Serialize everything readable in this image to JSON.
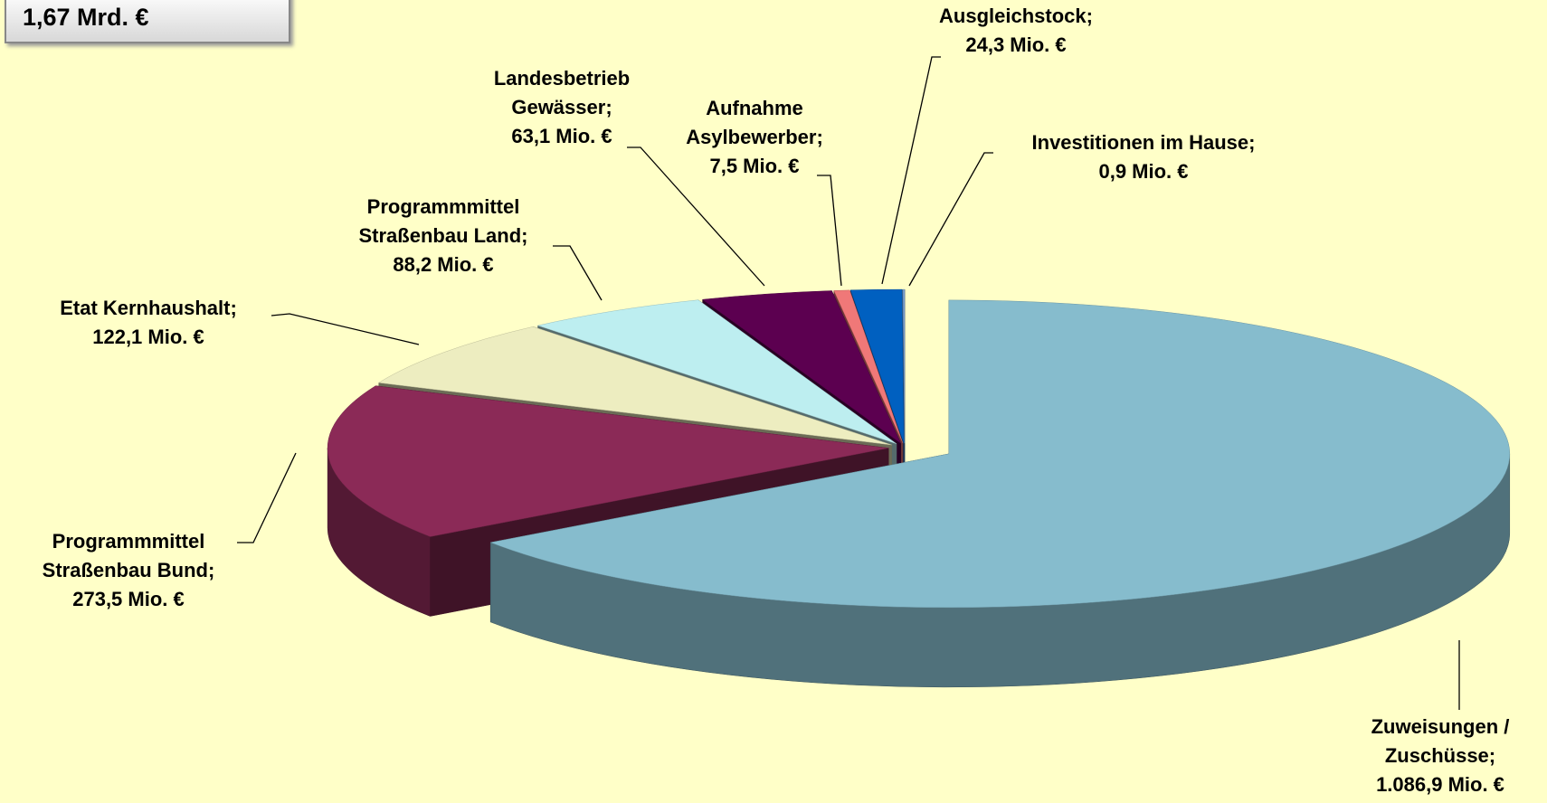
{
  "total_label": "1,67 Mrd. €",
  "chart_data": {
    "type": "pie3d",
    "label_separator": ";",
    "categories": [
      "Zuweisungen / Zuschüsse",
      "Programmmittel Straßenbau Bund",
      "Etat Kernhaushalt",
      "Programmmittel Straßenbau Land",
      "Landesbetrieb Gewässer",
      "Aufnahme Asylbewerber",
      "Ausgleichstock",
      "Investitionen im Hause"
    ],
    "values": [
      1086.9,
      273.5,
      122.1,
      88.2,
      63.1,
      7.5,
      24.3,
      0.9
    ],
    "value_labels": [
      "1.086,9 Mio. €",
      "273,5 Mio. €",
      "122,1 Mio. €",
      "88,2 Mio. €",
      "63,1 Mio. €",
      "7,5 Mio. €",
      "24,3 Mio. €",
      "0,9 Mio. €"
    ],
    "colors": [
      "#86bccd",
      "#8b2a57",
      "#ededc0",
      "#bdeef0",
      "#5c0050",
      "#f07878",
      "#0060c0",
      "#7aa0d0"
    ]
  }
}
